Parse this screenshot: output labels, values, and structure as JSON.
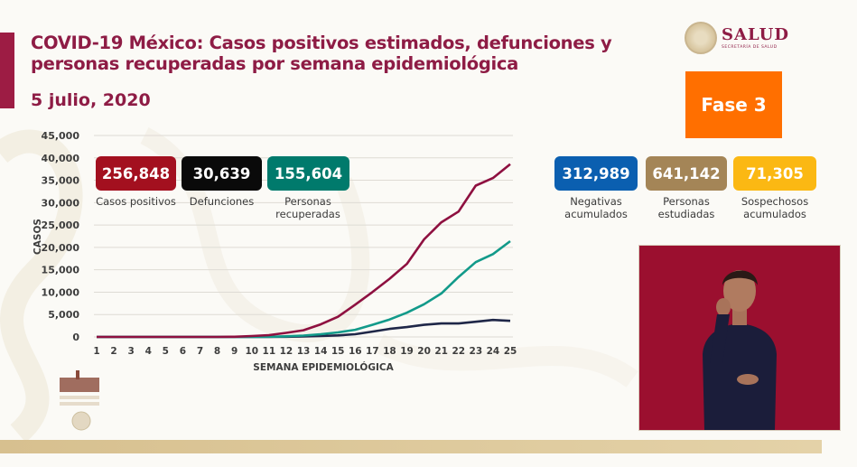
{
  "header": {
    "title": "COVID-19 México: Casos positivos estimados, defunciones y personas recuperadas por semana epidemiológica",
    "date": "5 julio, 2020"
  },
  "logo": {
    "name": "SALUD",
    "subtitle": "SECRETARÍA DE SALUD"
  },
  "phase": {
    "label": "Fase 3",
    "color": "#ff6f00"
  },
  "stats_left": [
    {
      "value": "256,848",
      "label": "Casos positivos",
      "color": "#a3101f"
    },
    {
      "value": "30,639",
      "label": "Defunciones",
      "color": "#0a0a0a"
    },
    {
      "value": "155,604",
      "label": "Personas recuperadas",
      "color": "#007a6c"
    }
  ],
  "stats_right": [
    {
      "value": "312,989",
      "label": "Negativas acumulados",
      "color": "#0b5fb0"
    },
    {
      "value": "641,142",
      "label": "Personas estudiadas",
      "color": "#a48557"
    },
    {
      "value": "71,305",
      "label": "Sospechosos acumulados",
      "color": "#fbb813"
    }
  ],
  "interpreter": {
    "description": "Sign language interpreter video"
  },
  "chart_data": {
    "type": "line",
    "title": "COVID-19 México: Casos positivos estimados, defunciones y personas recuperadas por semana epidemiológica",
    "xlabel": "SEMANA EPIDEMIOLÓGICA",
    "ylabel": "CASOS",
    "ylim": [
      0,
      45000
    ],
    "yticks": [
      "0",
      "5,000",
      "10,000",
      "15,000",
      "20,000",
      "25,000",
      "30,000",
      "35,000",
      "40,000",
      "45,000"
    ],
    "x": [
      1,
      2,
      3,
      4,
      5,
      6,
      7,
      8,
      9,
      10,
      11,
      12,
      13,
      14,
      15,
      16,
      17,
      18,
      19,
      20,
      21,
      22,
      23,
      24,
      25
    ],
    "grid": true,
    "legend_position": "none",
    "series": [
      {
        "name": "Casos positivos estimados",
        "color": "#8e1040",
        "values": [
          0,
          0,
          0,
          0,
          0,
          0,
          0,
          0,
          50,
          200,
          400,
          900,
          1500,
          2800,
          4500,
          7200,
          10000,
          13000,
          16300,
          21800,
          25600,
          28000,
          33800,
          35500,
          38600
        ]
      },
      {
        "name": "Personas recuperadas",
        "color": "#129a8a",
        "values": [
          0,
          0,
          0,
          0,
          0,
          0,
          0,
          0,
          0,
          0,
          50,
          150,
          300,
          600,
          1000,
          1600,
          2700,
          3900,
          5400,
          7300,
          9700,
          13400,
          16700,
          18500,
          21400
        ]
      },
      {
        "name": "Defunciones",
        "color": "#1f2748",
        "values": [
          0,
          0,
          0,
          0,
          0,
          0,
          0,
          0,
          0,
          0,
          20,
          50,
          120,
          200,
          350,
          600,
          1200,
          1800,
          2200,
          2700,
          3000,
          3000,
          3400,
          3800,
          3600
        ]
      }
    ]
  }
}
